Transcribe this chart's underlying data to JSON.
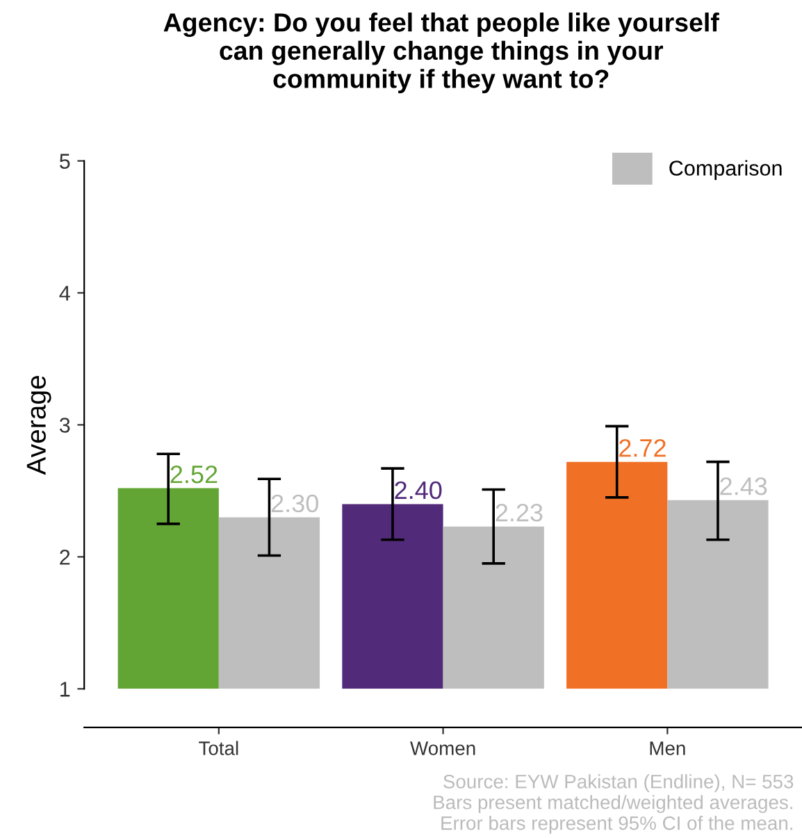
{
  "chart_data": {
    "type": "bar",
    "title": "Agency: Do you feel that people like yourself\ncan generally change things in your\ncommunity if they want to?",
    "ylabel": "Average",
    "categories": [
      "Total",
      "Women",
      "Men"
    ],
    "series": [
      {
        "colors": [
          "#62a534",
          "#522a7a",
          "#f07025"
        ],
        "values": [
          2.52,
          2.4,
          2.72
        ],
        "value_labels": [
          "2.52",
          "2.40",
          "2.72"
        ],
        "errors": [
          [
            2.25,
            2.78
          ],
          [
            2.13,
            2.67
          ],
          [
            2.45,
            2.99
          ]
        ]
      },
      {
        "name": "Comparison",
        "color": "#bebebe",
        "values": [
          2.3,
          2.23,
          2.43
        ],
        "value_labels": [
          "2.30",
          "2.23",
          "2.43"
        ],
        "errors": [
          [
            2.01,
            2.59
          ],
          [
            1.95,
            2.51
          ],
          [
            2.13,
            2.72
          ]
        ]
      }
    ],
    "ylim": [
      1,
      5
    ],
    "yticks": [
      1,
      2,
      3,
      4,
      5
    ],
    "grid": false,
    "legend": "top right",
    "annotations": [
      "Source: EYW Pakistan (Endline), N= 553\nBars present matched/weighted averages.\nError bars represent 95% CI of the mean."
    ]
  }
}
